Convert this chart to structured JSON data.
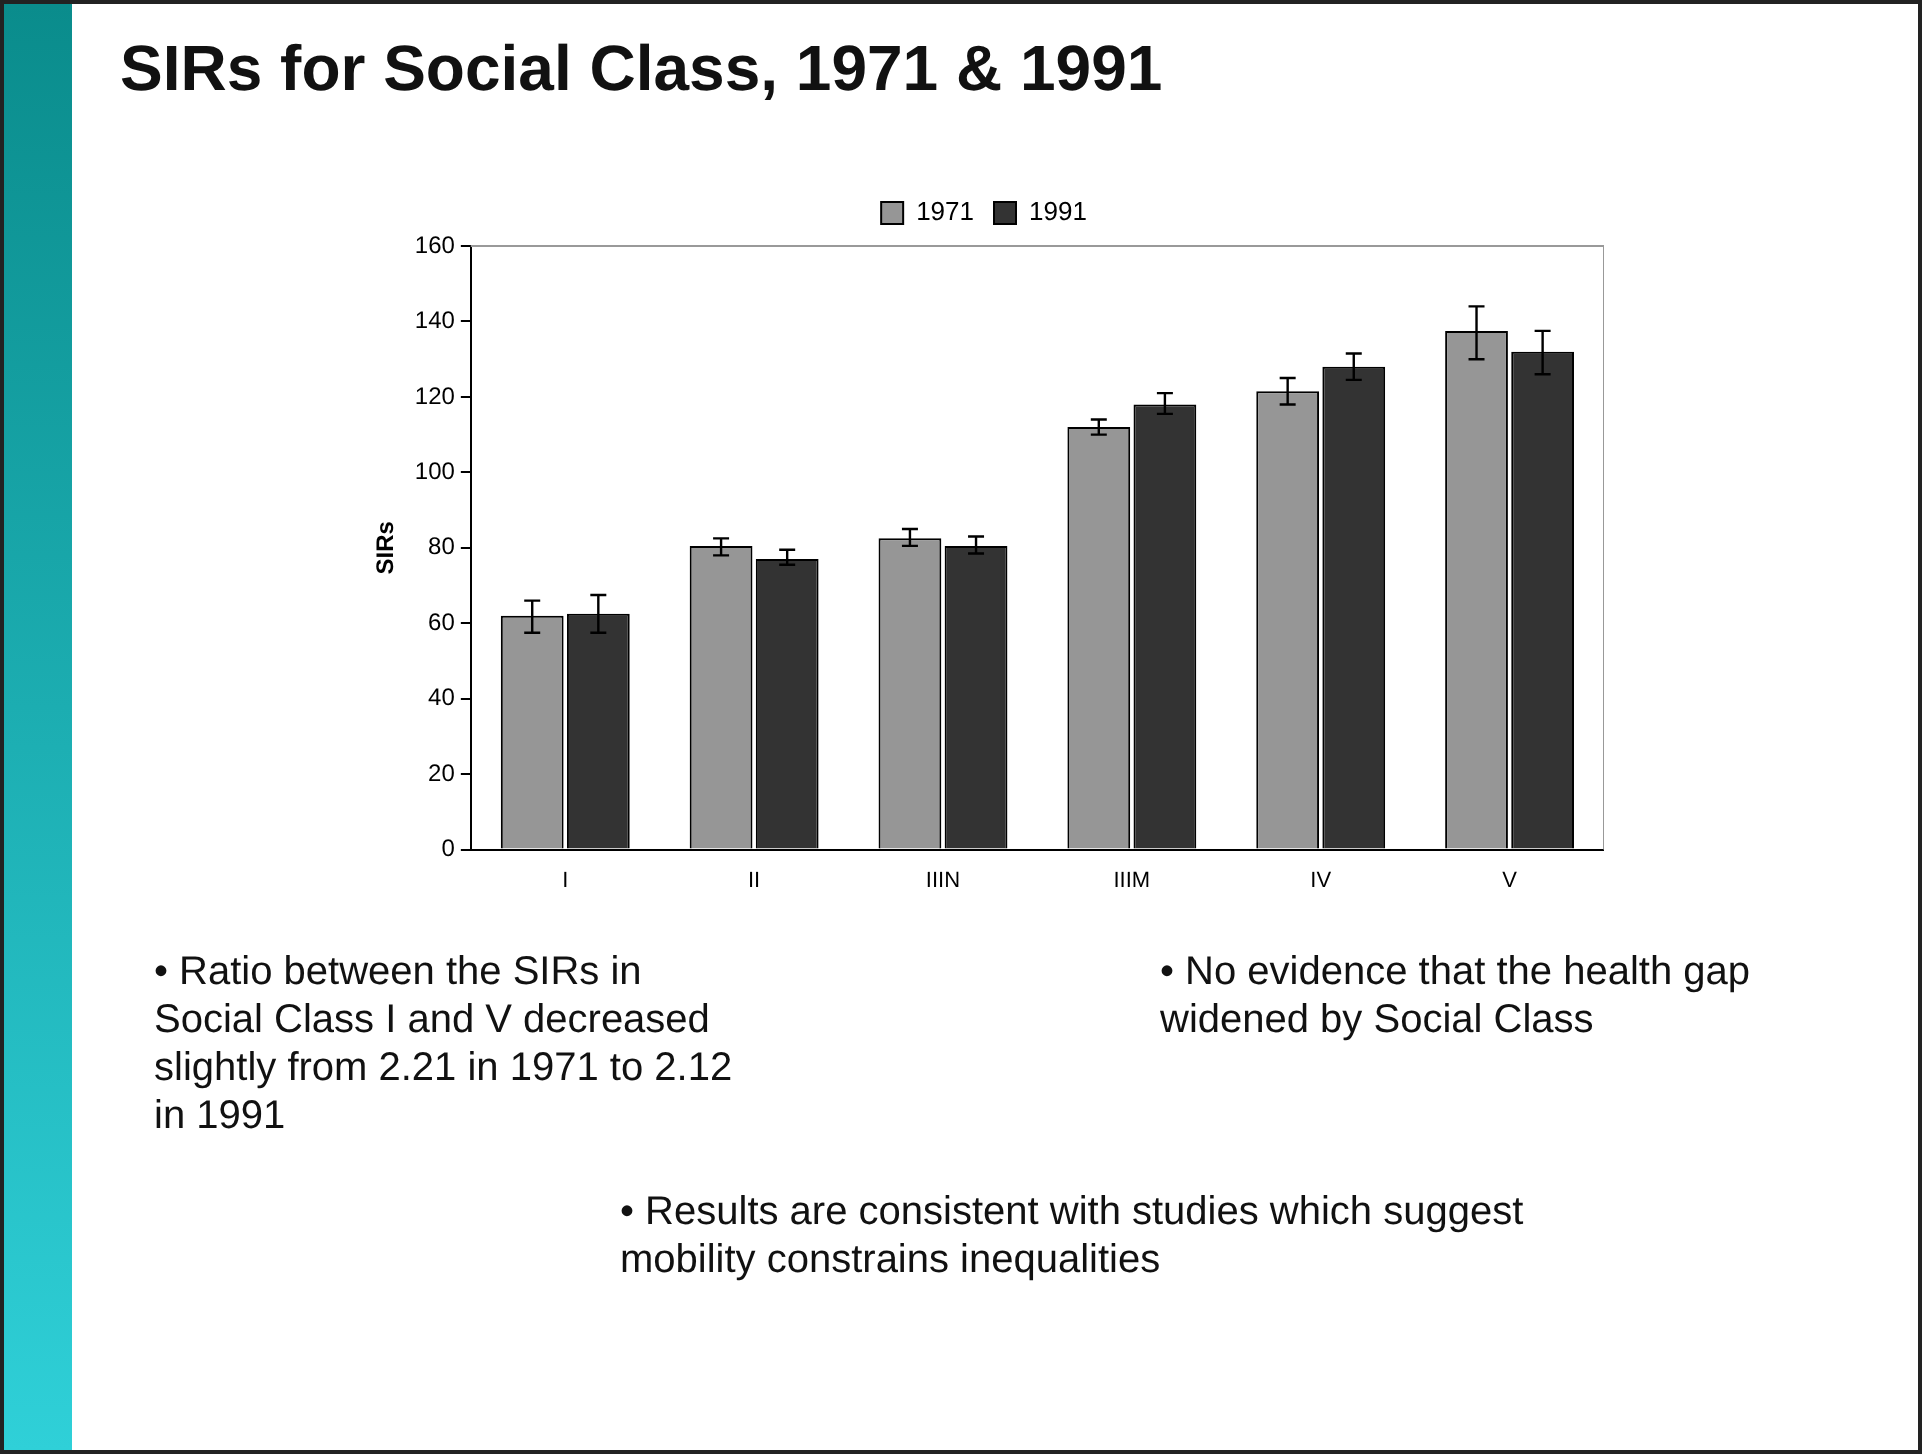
{
  "chart_data": {
    "type": "bar",
    "title": "SIRs for Social Class, 1971 & 1991",
    "ylabel": "SIRs",
    "categories": [
      "I",
      "II",
      "IIIN",
      "IIIM",
      "IV",
      "V"
    ],
    "series": [
      {
        "name": "1971",
        "color": "#969696",
        "values": [
          62,
          80.5,
          82.5,
          112,
          121.5,
          137.5
        ],
        "errors": [
          [
            57.5,
            66
          ],
          [
            78,
            82.5
          ],
          [
            80.5,
            85
          ],
          [
            110,
            114
          ],
          [
            118,
            125
          ],
          [
            130,
            144
          ]
        ]
      },
      {
        "name": "1991",
        "color": "#333333",
        "values": [
          62.5,
          77,
          80.5,
          118,
          128,
          132
        ],
        "errors": [
          [
            57.5,
            67.5
          ],
          [
            75.5,
            79.5
          ],
          [
            78.5,
            83
          ],
          [
            115.5,
            121
          ],
          [
            124.5,
            131.5
          ],
          [
            126,
            137.5
          ]
        ]
      }
    ],
    "ylim": [
      0,
      160
    ],
    "yticks": [
      0,
      20,
      40,
      60,
      80,
      100,
      120,
      140,
      160
    ],
    "grid": false,
    "legend": "top",
    "annotations": [
      "• Ratio between the SIRs in Social Class I and V decreased slightly from 2.21 in 1971 to 2.12 in 1991",
      "• No evidence that the health gap widened by Social Class",
      "• Results are consistent with studies which suggest mobility constrains inequalities"
    ]
  }
}
